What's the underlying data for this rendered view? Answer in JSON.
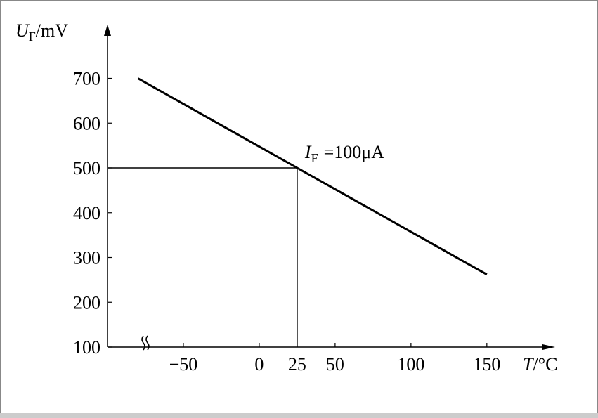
{
  "chart_data": {
    "type": "line",
    "y_label": {
      "symbol": "U",
      "subscript": "F",
      "unit": "/mV"
    },
    "x_label": {
      "symbol": "T",
      "unit": "/°C"
    },
    "annotation": {
      "symbol": "I",
      "subscript": "F",
      "text": "=100μA"
    },
    "x": [
      -80,
      25,
      150
    ],
    "series": [
      {
        "values": [
          700,
          500,
          262
        ],
        "color": "#000000"
      }
    ],
    "xlim": [
      -100,
      195
    ],
    "ylim": [
      100,
      820
    ],
    "xticks": [
      {
        "value": -50,
        "label": "−50"
      },
      0,
      25,
      50,
      100,
      150
    ],
    "yticks": [
      100,
      200,
      300,
      400,
      500,
      600,
      700
    ],
    "reference_point": 1
  }
}
